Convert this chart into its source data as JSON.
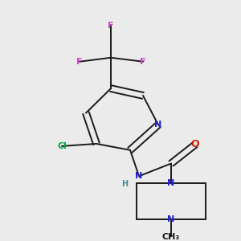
{
  "background_color": "#ebebeb",
  "figsize": [
    3.0,
    3.0
  ],
  "dpi": 100,
  "colors": {
    "bond": "#1a1a1a",
    "N": "#2222cc",
    "O": "#cc2200",
    "F": "#cc44cc",
    "Cl": "#00aa44",
    "H": "#448888",
    "C": "#1a1a1a"
  }
}
